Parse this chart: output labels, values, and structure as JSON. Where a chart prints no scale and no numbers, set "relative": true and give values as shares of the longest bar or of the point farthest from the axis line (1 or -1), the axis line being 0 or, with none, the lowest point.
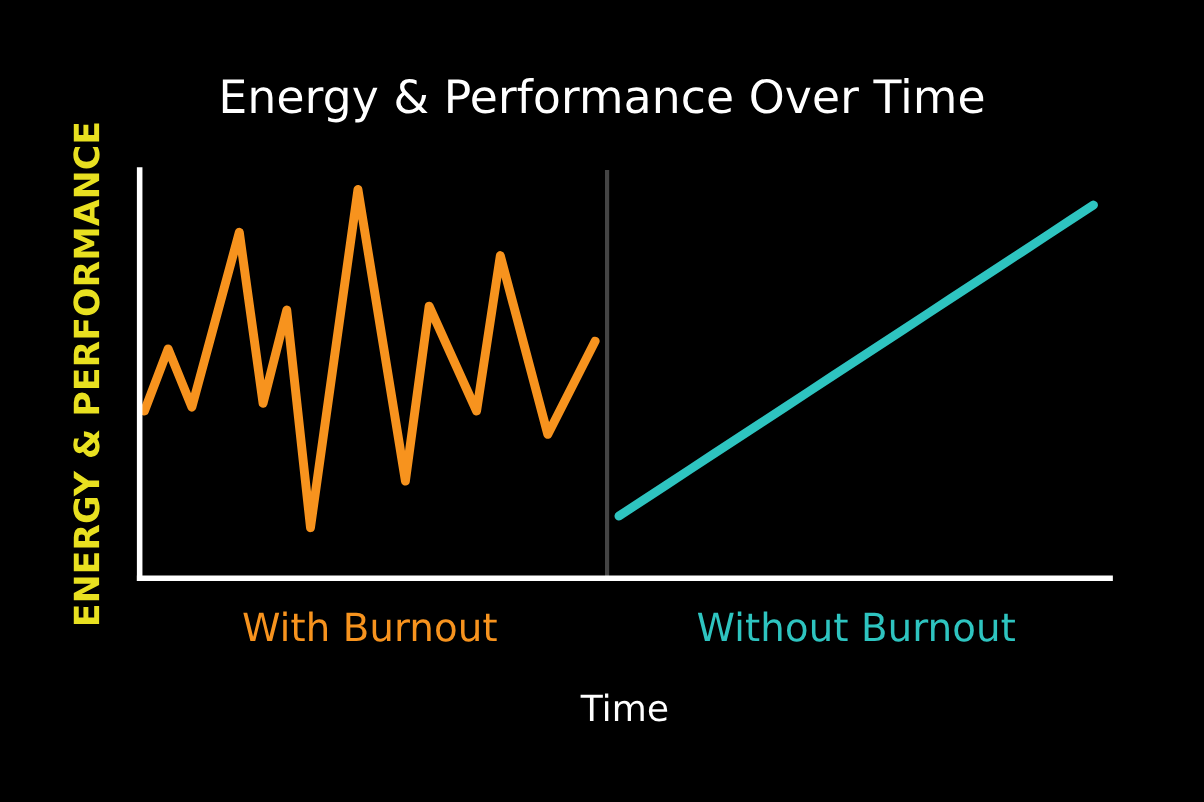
{
  "chart_data": {
    "type": "line",
    "title": "Energy & Performance Over Time",
    "xlabel": "Time",
    "ylabel": "ENERGY & PERFORMANCE",
    "relative": true,
    "legend": false,
    "marker": "none",
    "line_style": "solid",
    "categories": [
      null,
      null,
      null,
      null,
      null,
      null,
      null,
      null,
      null,
      null,
      null,
      null,
      null,
      null,
      null,
      null,
      null,
      null,
      null,
      null,
      null,
      null,
      null,
      null,
      null,
      null,
      null,
      null,
      null,
      null,
      null,
      null,
      null,
      null,
      null,
      null,
      null,
      null,
      null,
      null,
      null
    ],
    "series": [
      {
        "name": "With Burnout",
        "color": "#f7931e",
        "values": [
          0.43,
          0.59,
          0.44,
          0.665,
          0.89,
          0.45,
          0.69,
          0.13,
          0.565,
          1.0,
          0.625,
          0.25,
          0.7,
          0.565,
          0.43,
          0.83,
          0.6,
          0.37,
          0.49,
          0.61,
          null,
          null,
          null,
          null,
          null,
          null,
          null,
          null,
          null,
          null,
          null,
          null,
          null,
          null,
          null,
          null,
          null,
          null,
          null,
          null,
          null
        ]
      },
      {
        "name": "Without Burnout",
        "color": "#2ec4c0",
        "values": [
          null,
          null,
          null,
          null,
          null,
          null,
          null,
          null,
          null,
          null,
          null,
          null,
          null,
          null,
          null,
          null,
          null,
          null,
          null,
          null,
          0.16,
          0.2,
          0.24,
          0.28,
          0.32,
          0.36,
          0.4,
          0.44,
          0.48,
          0.52,
          0.56,
          0.6,
          0.64,
          0.68,
          0.72,
          0.76,
          0.8,
          0.84,
          0.88,
          0.92,
          0.96
        ]
      }
    ]
  }
}
